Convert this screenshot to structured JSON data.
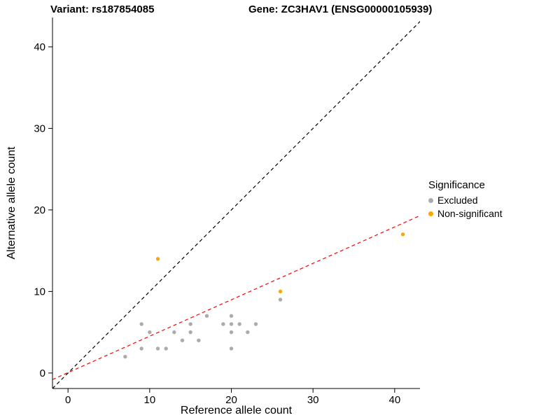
{
  "titles": {
    "variant": "Variant: rs187854085",
    "gene": "Gene: ZC3HAV1 (ENSG00000105939)"
  },
  "chart_data": {
    "type": "scatter",
    "xlabel": "Reference allele count",
    "ylabel": "Alternative allele count",
    "xlim": [
      -1.9,
      43.1
    ],
    "ylim": [
      -1.9,
      43.6
    ],
    "xticks": [
      0,
      10,
      20,
      30,
      40
    ],
    "yticks": [
      0,
      10,
      20,
      30,
      40
    ],
    "grid": false,
    "axis_color": "#000000",
    "legend": {
      "title": "Significance",
      "position": "right",
      "entries": [
        {
          "label": "Excluded",
          "color": "#ABABAB"
        },
        {
          "label": "Non-significant",
          "color": "#FFA500"
        }
      ]
    },
    "series": [
      {
        "name": "Excluded",
        "color": "#ABABAB",
        "points": [
          [
            7,
            2
          ],
          [
            9,
            6
          ],
          [
            9,
            3
          ],
          [
            10,
            5
          ],
          [
            11,
            3
          ],
          [
            12,
            3
          ],
          [
            13,
            5
          ],
          [
            14,
            4
          ],
          [
            15,
            6
          ],
          [
            15,
            5
          ],
          [
            16,
            4
          ],
          [
            17,
            7
          ],
          [
            19,
            6
          ],
          [
            20,
            7
          ],
          [
            20,
            6
          ],
          [
            20,
            5
          ],
          [
            20,
            3
          ],
          [
            21,
            6
          ],
          [
            22,
            5
          ],
          [
            23,
            6
          ],
          [
            26,
            9
          ]
        ]
      },
      {
        "name": "Non-significant",
        "color": "#FFA500",
        "points": [
          [
            11,
            14
          ],
          [
            26,
            10
          ],
          [
            41,
            17
          ]
        ]
      }
    ],
    "lines": [
      {
        "name": "identity-line",
        "color": "#000000",
        "dashed": true,
        "points": [
          [
            -1.9,
            -1.9
          ],
          [
            44,
            44
          ]
        ]
      },
      {
        "name": "regression-line",
        "color": "#FF0000",
        "dashed": true,
        "points": [
          [
            -1.9,
            -0.8
          ],
          [
            43.1,
            19.3
          ]
        ]
      }
    ]
  }
}
